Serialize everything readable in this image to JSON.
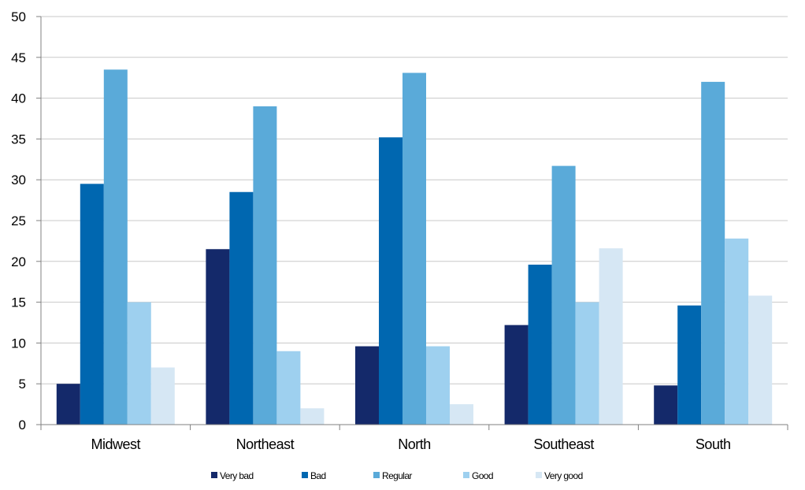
{
  "chart_data": {
    "type": "bar",
    "title": "",
    "xlabel": "",
    "ylabel": "",
    "ylim": [
      0,
      50
    ],
    "yticks": [
      0,
      5,
      10,
      15,
      20,
      25,
      30,
      35,
      40,
      45,
      50
    ],
    "grid": true,
    "legend_position": "bottom",
    "categories": [
      "Midwest",
      "Northeast",
      "North",
      "Southeast",
      "South"
    ],
    "series": [
      {
        "name": "Very bad",
        "color": "#14296a",
        "values": [
          5.0,
          21.5,
          9.6,
          12.2,
          4.8
        ]
      },
      {
        "name": "Bad",
        "color": "#0067b0",
        "values": [
          29.5,
          28.5,
          35.2,
          19.6,
          14.6
        ]
      },
      {
        "name": "Regular",
        "color": "#5aaad9",
        "values": [
          43.5,
          39.0,
          43.1,
          31.7,
          42.0
        ]
      },
      {
        "name": "Good",
        "color": "#9ed0ef",
        "values": [
          15.0,
          9.0,
          9.6,
          15.0,
          22.8
        ]
      },
      {
        "name": "Very good",
        "color": "#d6e7f4",
        "values": [
          7.0,
          2.0,
          2.5,
          21.6,
          15.8
        ]
      }
    ]
  }
}
